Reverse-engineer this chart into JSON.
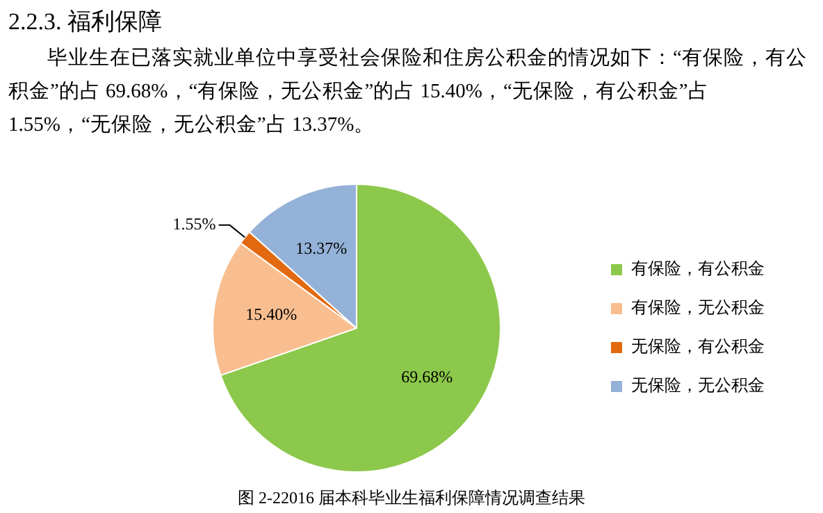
{
  "chart_data": {
    "type": "pie",
    "title": "2.2.3. 福利保障",
    "subtitle": "毕业生在已落实就业单位中享受社会保险和住房公积金的情况如下：“有保险，有公积金”的占 69.68%，“有保险，无公积金”的占 15.40%，“无保险，有公积金”占 1.55%，“无保险，无公积金”占 13.37%。",
    "categories": [
      "有保险，有公积金",
      "有保险，无公积金",
      "无保险，有公积金",
      "无保险，无公积金"
    ],
    "values": [
      69.68,
      15.4,
      1.55,
      13.37
    ],
    "colors": [
      "#8cc84b",
      "#f9be8f",
      "#e2690f",
      "#94b2d8"
    ],
    "value_labels": [
      "69.68%",
      "15.40%",
      "1.55%",
      "13.37%"
    ],
    "legend": "right",
    "annotations": [
      "图 2-22016 届本科毕业生福利保障情况调查结果"
    ]
  }
}
